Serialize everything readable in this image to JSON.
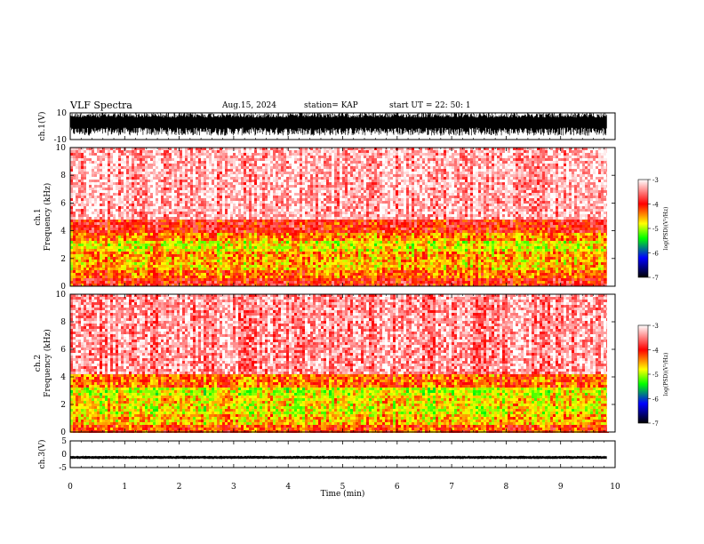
{
  "header": {
    "title": "VLF Spectra",
    "date": "Aug.15, 2024",
    "station": "station= KAP",
    "start_ut": "start  UT =   22: 50: 1"
  },
  "colors": {
    "colorbar": [
      "#ffffff",
      "#ff0000",
      "#ffff00",
      "#00ff00",
      "#0000ff",
      "#000000"
    ],
    "waveform": "#000000"
  },
  "chart_data": [
    {
      "type": "line",
      "name": "ch1-waveform",
      "ylabel": "ch.1(V)",
      "ylim": [
        -10,
        10
      ],
      "yticks": [
        "10",
        "-10"
      ],
      "x_range_min": [
        0,
        10
      ],
      "description_of_values": "dense noisy oscillation filling roughly -7 to +10 V",
      "envelope_upper": 10,
      "envelope_lower": -7
    },
    {
      "type": "heatmap",
      "name": "ch1-spectrogram",
      "ylabel": "ch.1\nFrequency  (kHz)",
      "ylim": [
        0,
        10
      ],
      "yticks": [
        "0",
        "2",
        "4",
        "6",
        "8",
        "10"
      ],
      "colorbar_label": "log(PSD)(V²/Hz)",
      "colorbar_ticks": [
        "-3",
        "-4",
        "-5",
        "-6",
        "-7"
      ],
      "bands_khz": [
        {
          "from": 0,
          "to": 0.6,
          "level": -4.0
        },
        {
          "from": 0.6,
          "to": 1.2,
          "level": -4.3
        },
        {
          "from": 1.2,
          "to": 2.0,
          "level": -4.6
        },
        {
          "from": 2.0,
          "to": 2.6,
          "level": -4.5
        },
        {
          "from": 2.6,
          "to": 3.4,
          "level": -4.8
        },
        {
          "from": 3.4,
          "to": 4.0,
          "level": -4.4
        },
        {
          "from": 4.0,
          "to": 5.0,
          "level": -4.0
        },
        {
          "from": 5.0,
          "to": 10.0,
          "level": -3.3
        }
      ]
    },
    {
      "type": "heatmap",
      "name": "ch2-spectrogram",
      "ylabel": "ch.2\nFrequency  (kHz)",
      "ylim": [
        0,
        10
      ],
      "yticks": [
        "0",
        "2",
        "4",
        "6",
        "8",
        "10"
      ],
      "colorbar_label": "log(PSD)(V²/Hz)",
      "colorbar_ticks": [
        "-3",
        "-4",
        "-5",
        "-6",
        "-7"
      ],
      "bands_khz": [
        {
          "from": 0,
          "to": 0.6,
          "level": -4.2
        },
        {
          "from": 0.6,
          "to": 1.4,
          "level": -4.6
        },
        {
          "from": 1.4,
          "to": 2.0,
          "level": -4.8
        },
        {
          "from": 2.0,
          "to": 2.7,
          "level": -4.7
        },
        {
          "from": 2.7,
          "to": 3.3,
          "level": -4.9
        },
        {
          "from": 3.3,
          "to": 4.2,
          "level": -4.3
        },
        {
          "from": 4.2,
          "to": 10.0,
          "level": -3.4
        }
      ]
    },
    {
      "type": "line",
      "name": "ch3-waveform",
      "ylabel": "ch.3(V)",
      "ylim": [
        -5,
        5
      ],
      "yticks": [
        "5",
        "0",
        "-5"
      ],
      "value_mean": -1.2,
      "value_amplitude": 0.6
    }
  ],
  "x_axis": {
    "xlabel": "Time  (min)",
    "xlim": [
      0,
      10
    ],
    "ticks": [
      "0",
      "1",
      "2",
      "3",
      "4",
      "5",
      "6",
      "7",
      "8",
      "9",
      "10"
    ],
    "data_end_min": 9.85
  }
}
